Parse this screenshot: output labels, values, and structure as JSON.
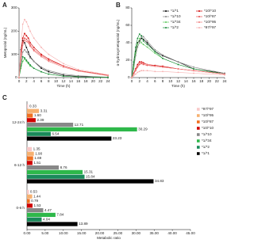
{
  "chart_data": [
    {
      "type": "line",
      "label": "A",
      "x_label": "Time (h)",
      "y_label": "Metoprolol (ng/mL)",
      "xlim": [
        0,
        24
      ],
      "xticks": [
        0,
        2,
        4,
        6,
        8,
        10,
        12,
        14,
        16,
        18,
        20,
        22,
        24
      ],
      "ylim": [
        0,
        300
      ],
      "yticks": [
        0,
        100,
        200,
        300
      ],
      "x": [
        0,
        0.5,
        1,
        1.5,
        2,
        2.5,
        3,
        4,
        6,
        8,
        12,
        16,
        24
      ],
      "series": [
        {
          "name": "*1/*1",
          "color": "#000000",
          "values": [
            0,
            120,
            160,
            150,
            130,
            110,
            90,
            70,
            40,
            25,
            10,
            5,
            1
          ]
        },
        {
          "name": "*1/*10",
          "color": "#888888",
          "values": [
            0,
            60,
            110,
            120,
            110,
            100,
            85,
            70,
            45,
            30,
            15,
            8,
            2
          ]
        },
        {
          "name": "*1/*34",
          "color": "#5cc85c",
          "values": [
            0,
            40,
            70,
            80,
            70,
            60,
            50,
            40,
            25,
            15,
            6,
            3,
            1
          ]
        },
        {
          "name": "*1/*2",
          "color": "#1a8a3a",
          "values": [
            0,
            50,
            90,
            85,
            75,
            65,
            55,
            40,
            25,
            15,
            6,
            3,
            1
          ]
        },
        {
          "name": "*10/*10",
          "color": "#d00000",
          "values": [
            0,
            100,
            170,
            190,
            180,
            170,
            150,
            130,
            100,
            80,
            50,
            30,
            10
          ]
        },
        {
          "name": "*10/*87",
          "color": "#e85050",
          "values": [
            0,
            90,
            150,
            170,
            165,
            155,
            140,
            120,
            95,
            75,
            50,
            30,
            10
          ]
        },
        {
          "name": "*10/*95",
          "color": "#f08080",
          "values": [
            0,
            80,
            140,
            160,
            155,
            150,
            135,
            115,
            90,
            70,
            45,
            28,
            8
          ]
        },
        {
          "name": "*97/*97",
          "color": "#f6b0b0",
          "values": [
            0,
            130,
            230,
            250,
            240,
            220,
            200,
            170,
            130,
            100,
            60,
            35,
            12
          ]
        }
      ]
    },
    {
      "type": "line",
      "label": "B",
      "x_label": "Time (h)",
      "y_label": "α-hydroxymetoprolol (ng/mL)",
      "xlim": [
        0,
        24
      ],
      "xticks": [
        0,
        2,
        4,
        6,
        8,
        10,
        12,
        14,
        16,
        18,
        20,
        22,
        24
      ],
      "ylim": [
        0,
        80
      ],
      "yticks": [
        0,
        20,
        40,
        60,
        80
      ],
      "legend": "upper right",
      "x": [
        0,
        0.5,
        1,
        1.5,
        2,
        2.5,
        3,
        4,
        6,
        8,
        12,
        16,
        24
      ],
      "series": [
        {
          "name": "*1/*1",
          "color": "#000000",
          "values": [
            0,
            15,
            30,
            40,
            42,
            45,
            44,
            40,
            30,
            25,
            18,
            10,
            5
          ]
        },
        {
          "name": "*1/*10",
          "color": "#888888",
          "values": [
            0,
            10,
            25,
            35,
            40,
            48,
            47,
            42,
            32,
            26,
            18,
            12,
            5
          ]
        },
        {
          "name": "*1/*34",
          "color": "#5cc85c",
          "values": [
            0,
            12,
            28,
            38,
            45,
            40,
            38,
            35,
            28,
            22,
            15,
            10,
            4
          ]
        },
        {
          "name": "*1/*2",
          "color": "#1a8a3a",
          "values": [
            0,
            18,
            35,
            45,
            50,
            48,
            42,
            38,
            30,
            22,
            15,
            10,
            4
          ]
        },
        {
          "name": "*10/*10",
          "color": "#d00000",
          "values": [
            0,
            5,
            10,
            15,
            18,
            18,
            17,
            15,
            14,
            13,
            10,
            8,
            4
          ]
        },
        {
          "name": "*10/*87",
          "color": "#e85050",
          "values": [
            0,
            4,
            8,
            12,
            15,
            16,
            15,
            14,
            13,
            12,
            10,
            8,
            4
          ]
        },
        {
          "name": "*10/*95",
          "color": "#f08080",
          "values": [
            0,
            4,
            9,
            13,
            16,
            17,
            16,
            15,
            13,
            12,
            10,
            8,
            4
          ]
        },
        {
          "name": "*97/*97",
          "color": "#f6b0b0",
          "values": [
            0,
            2,
            4,
            6,
            7,
            8,
            8,
            8,
            7,
            7,
            6,
            5,
            3
          ]
        }
      ]
    },
    {
      "type": "barh",
      "label": "C",
      "x_label": "Metabolic ratio",
      "legend": "right",
      "xlim": [
        0,
        45
      ],
      "xticks": [
        {
          "value": 0,
          "label": "0.00"
        },
        {
          "value": 5,
          "label": "5.00"
        },
        {
          "value": 10,
          "label": "10.00"
        },
        {
          "value": 15,
          "label": "15.00"
        },
        {
          "value": 20,
          "label": "20.00"
        },
        {
          "value": 25,
          "label": "25.00"
        },
        {
          "value": 30,
          "label": "30.00"
        },
        {
          "value": 35,
          "label": "35.00"
        },
        {
          "value": 40,
          "label": "40.00"
        },
        {
          "value": 45,
          "label": "45.00"
        }
      ],
      "categories": [
        "12-24 h",
        "6-12 h",
        "0-6 h"
      ],
      "series": [
        {
          "name": "*97/*97",
          "color": "#f8c8c8",
          "values": [
            0.33,
            1.35,
            0.53
          ],
          "value_labels": [
            "0.33",
            "1.35",
            "0.53"
          ]
        },
        {
          "name": "*10/*95",
          "color": "#f6b070",
          "values": [
            3.31,
            1.9,
            1.44
          ],
          "value_labels": [
            "3.31",
            "1.90",
            "1.44"
          ]
        },
        {
          "name": "*10/*87",
          "color": "#f07020",
          "values": [
            1.6,
            1.69,
            0.79
          ],
          "value_labels": [
            "1.60",
            "1.69",
            "0.79"
          ]
        },
        {
          "name": "*10/*10",
          "color": "#d00000",
          "values": [
            2.39,
            1.51,
            1.53
          ],
          "value_labels": [
            "2.39",
            "1.51",
            "1.53"
          ]
        },
        {
          "name": "*1/*10",
          "color": "#888888",
          "values": [
            12.71,
            8.76,
            4.47
          ],
          "value_labels": [
            "12.71",
            "8.76",
            "4.47"
          ]
        },
        {
          "name": "*1/*34",
          "color": "#2eb84a",
          "values": [
            30.29,
            15.31,
            7.84
          ],
          "value_labels": [
            "30.29",
            "15.31",
            "7.84"
          ]
        },
        {
          "name": "*1/*2",
          "color": "#1a8a5a",
          "values": [
            6.54,
            15.84,
            4.04
          ],
          "value_labels": [
            "6.54",
            "15.84",
            "4.04"
          ]
        },
        {
          "name": "*1/*1",
          "color": "#000000",
          "values": [
            23.23,
            34.83,
            13.89
          ],
          "value_labels": [
            "23.23",
            "34.83",
            "13.89"
          ]
        }
      ]
    }
  ]
}
